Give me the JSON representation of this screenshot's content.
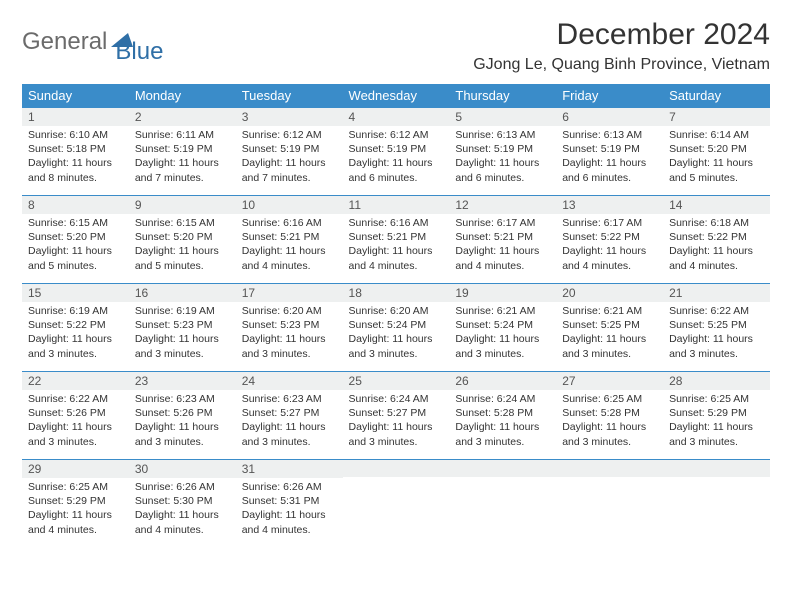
{
  "brand": {
    "part1": "General",
    "part2": "Blue"
  },
  "header": {
    "title": "December 2024",
    "location": "GJong Le, Quang Binh Province, Vietnam"
  },
  "colors": {
    "header_bg": "#3a8cc9",
    "header_text": "#ffffff",
    "daynum_bg": "#eef0f0",
    "border": "#3a8cc9",
    "body_text": "#333333",
    "logo_gray": "#6b6b6b",
    "logo_blue": "#2f6fa6"
  },
  "weekdays": [
    "Sunday",
    "Monday",
    "Tuesday",
    "Wednesday",
    "Thursday",
    "Friday",
    "Saturday"
  ],
  "days": [
    {
      "n": "1",
      "sr": "6:10 AM",
      "ss": "5:18 PM",
      "dl": "11 hours and 8 minutes."
    },
    {
      "n": "2",
      "sr": "6:11 AM",
      "ss": "5:19 PM",
      "dl": "11 hours and 7 minutes."
    },
    {
      "n": "3",
      "sr": "6:12 AM",
      "ss": "5:19 PM",
      "dl": "11 hours and 7 minutes."
    },
    {
      "n": "4",
      "sr": "6:12 AM",
      "ss": "5:19 PM",
      "dl": "11 hours and 6 minutes."
    },
    {
      "n": "5",
      "sr": "6:13 AM",
      "ss": "5:19 PM",
      "dl": "11 hours and 6 minutes."
    },
    {
      "n": "6",
      "sr": "6:13 AM",
      "ss": "5:19 PM",
      "dl": "11 hours and 6 minutes."
    },
    {
      "n": "7",
      "sr": "6:14 AM",
      "ss": "5:20 PM",
      "dl": "11 hours and 5 minutes."
    },
    {
      "n": "8",
      "sr": "6:15 AM",
      "ss": "5:20 PM",
      "dl": "11 hours and 5 minutes."
    },
    {
      "n": "9",
      "sr": "6:15 AM",
      "ss": "5:20 PM",
      "dl": "11 hours and 5 minutes."
    },
    {
      "n": "10",
      "sr": "6:16 AM",
      "ss": "5:21 PM",
      "dl": "11 hours and 4 minutes."
    },
    {
      "n": "11",
      "sr": "6:16 AM",
      "ss": "5:21 PM",
      "dl": "11 hours and 4 minutes."
    },
    {
      "n": "12",
      "sr": "6:17 AM",
      "ss": "5:21 PM",
      "dl": "11 hours and 4 minutes."
    },
    {
      "n": "13",
      "sr": "6:17 AM",
      "ss": "5:22 PM",
      "dl": "11 hours and 4 minutes."
    },
    {
      "n": "14",
      "sr": "6:18 AM",
      "ss": "5:22 PM",
      "dl": "11 hours and 4 minutes."
    },
    {
      "n": "15",
      "sr": "6:19 AM",
      "ss": "5:22 PM",
      "dl": "11 hours and 3 minutes."
    },
    {
      "n": "16",
      "sr": "6:19 AM",
      "ss": "5:23 PM",
      "dl": "11 hours and 3 minutes."
    },
    {
      "n": "17",
      "sr": "6:20 AM",
      "ss": "5:23 PM",
      "dl": "11 hours and 3 minutes."
    },
    {
      "n": "18",
      "sr": "6:20 AM",
      "ss": "5:24 PM",
      "dl": "11 hours and 3 minutes."
    },
    {
      "n": "19",
      "sr": "6:21 AM",
      "ss": "5:24 PM",
      "dl": "11 hours and 3 minutes."
    },
    {
      "n": "20",
      "sr": "6:21 AM",
      "ss": "5:25 PM",
      "dl": "11 hours and 3 minutes."
    },
    {
      "n": "21",
      "sr": "6:22 AM",
      "ss": "5:25 PM",
      "dl": "11 hours and 3 minutes."
    },
    {
      "n": "22",
      "sr": "6:22 AM",
      "ss": "5:26 PM",
      "dl": "11 hours and 3 minutes."
    },
    {
      "n": "23",
      "sr": "6:23 AM",
      "ss": "5:26 PM",
      "dl": "11 hours and 3 minutes."
    },
    {
      "n": "24",
      "sr": "6:23 AM",
      "ss": "5:27 PM",
      "dl": "11 hours and 3 minutes."
    },
    {
      "n": "25",
      "sr": "6:24 AM",
      "ss": "5:27 PM",
      "dl": "11 hours and 3 minutes."
    },
    {
      "n": "26",
      "sr": "6:24 AM",
      "ss": "5:28 PM",
      "dl": "11 hours and 3 minutes."
    },
    {
      "n": "27",
      "sr": "6:25 AM",
      "ss": "5:28 PM",
      "dl": "11 hours and 3 minutes."
    },
    {
      "n": "28",
      "sr": "6:25 AM",
      "ss": "5:29 PM",
      "dl": "11 hours and 3 minutes."
    },
    {
      "n": "29",
      "sr": "6:25 AM",
      "ss": "5:29 PM",
      "dl": "11 hours and 4 minutes."
    },
    {
      "n": "30",
      "sr": "6:26 AM",
      "ss": "5:30 PM",
      "dl": "11 hours and 4 minutes."
    },
    {
      "n": "31",
      "sr": "6:26 AM",
      "ss": "5:31 PM",
      "dl": "11 hours and 4 minutes."
    }
  ],
  "labels": {
    "sunrise": "Sunrise: ",
    "sunset": "Sunset: ",
    "daylight": "Daylight: "
  }
}
